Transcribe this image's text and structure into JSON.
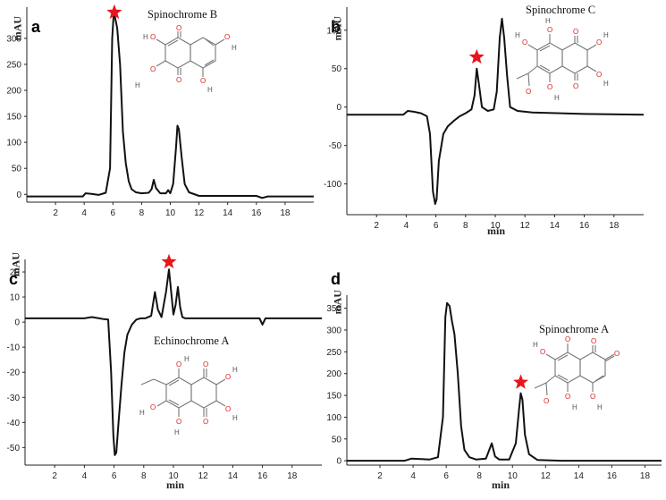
{
  "chart_data": [
    {
      "panel": "a",
      "type": "line",
      "title": "Spinochrome B",
      "xlabel": "",
      "ylabel": "mAU",
      "xlim": [
        0,
        20
      ],
      "ylim": [
        -15,
        360
      ],
      "xticks": [
        2,
        4,
        6,
        8,
        10,
        12,
        14,
        16,
        18
      ],
      "yticks": [
        0,
        50,
        100,
        150,
        200,
        250,
        300
      ],
      "x": [
        0,
        3.9,
        4.1,
        4.5,
        5.0,
        5.5,
        5.8,
        5.95,
        6.05,
        6.15,
        6.3,
        6.5,
        6.7,
        6.9,
        7.1,
        7.3,
        7.6,
        8.0,
        8.5,
        8.7,
        8.85,
        9.0,
        9.3,
        9.7,
        9.85,
        10.0,
        10.2,
        10.4,
        10.5,
        10.6,
        10.8,
        11.0,
        11.3,
        12.0,
        16.0,
        16.4,
        16.8,
        20
      ],
      "y": [
        -4,
        -4,
        2,
        1,
        -1,
        3,
        50,
        300,
        345,
        340,
        320,
        250,
        120,
        60,
        25,
        10,
        4,
        2,
        3,
        10,
        28,
        12,
        2,
        2,
        8,
        2,
        20,
        90,
        132,
        125,
        70,
        20,
        4,
        -3,
        -3,
        -7,
        -4,
        -4
      ],
      "markers": [
        {
          "x": 6.1,
          "y": 350
        }
      ],
      "compound": "Spinochrome B"
    },
    {
      "panel": "b",
      "type": "line",
      "title": "Spinochrome C",
      "xlabel": "min",
      "ylabel": "mAU",
      "xlim": [
        0,
        20
      ],
      "ylim": [
        -140,
        130
      ],
      "xticks": [
        2,
        4,
        6,
        8,
        10,
        12,
        14,
        16,
        18
      ],
      "yticks": [
        -100,
        -50,
        0,
        50,
        100
      ],
      "x": [
        0,
        3.8,
        4.1,
        4.5,
        5.0,
        5.4,
        5.6,
        5.8,
        5.95,
        6.05,
        6.2,
        6.5,
        6.8,
        7.2,
        7.6,
        8.0,
        8.4,
        8.6,
        8.75,
        8.9,
        9.1,
        9.5,
        9.9,
        10.1,
        10.3,
        10.45,
        10.6,
        10.8,
        11.0,
        11.5,
        12.5,
        16.0,
        20
      ],
      "y": [
        -10,
        -10,
        -5,
        -6,
        -8,
        -12,
        -35,
        -110,
        -126,
        -120,
        -70,
        -35,
        -25,
        -18,
        -12,
        -8,
        -3,
        15,
        50,
        30,
        0,
        -5,
        -3,
        20,
        90,
        115,
        90,
        40,
        0,
        -5,
        -7,
        -9,
        -10
      ],
      "markers": [
        {
          "x": 8.75,
          "y": 65
        }
      ],
      "compound": "Spinochrome C"
    },
    {
      "panel": "c",
      "type": "line",
      "title": "Echinochrome A",
      "xlabel": "min",
      "ylabel": "mAU",
      "xlim": [
        0,
        20
      ],
      "ylim": [
        -57,
        25
      ],
      "xticks": [
        2,
        4,
        6,
        8,
        10,
        12,
        14,
        16,
        18
      ],
      "yticks": [
        -50,
        -40,
        -30,
        -20,
        -10,
        0,
        10,
        20
      ],
      "x": [
        0,
        4.0,
        4.5,
        5.0,
        5.3,
        5.6,
        5.8,
        5.95,
        6.05,
        6.15,
        6.3,
        6.5,
        6.7,
        6.9,
        7.2,
        7.5,
        7.8,
        8.1,
        8.5,
        8.75,
        8.95,
        9.2,
        9.5,
        9.7,
        9.85,
        10.0,
        10.15,
        10.3,
        10.45,
        10.6,
        10.8,
        11.5,
        15.8,
        16.0,
        16.2,
        20
      ],
      "y": [
        1.5,
        1.5,
        2,
        1.5,
        1.2,
        1.0,
        -20,
        -45,
        -53,
        -52,
        -40,
        -25,
        -12,
        -5,
        -1,
        1,
        1.5,
        1.5,
        2.5,
        12,
        5,
        2,
        12,
        21,
        12,
        3,
        7,
        14,
        6,
        2,
        1.5,
        1.5,
        1.5,
        -1,
        1.5,
        1.5
      ],
      "markers": [
        {
          "x": 9.7,
          "y": 24
        }
      ],
      "compound": "Echinochrome A"
    },
    {
      "panel": "d",
      "type": "line",
      "title": "Spinochrome A",
      "xlabel": "min",
      "ylabel": "mAU",
      "xlim": [
        0,
        19
      ],
      "ylim": [
        -10,
        380
      ],
      "xticks": [
        2,
        4,
        6,
        8,
        10,
        12,
        14,
        16,
        18
      ],
      "yticks": [
        0,
        50,
        100,
        150,
        200,
        250,
        300,
        350
      ],
      "x": [
        0,
        3.5,
        3.9,
        4.5,
        5.0,
        5.5,
        5.8,
        5.95,
        6.05,
        6.2,
        6.35,
        6.5,
        6.7,
        6.9,
        7.1,
        7.4,
        7.8,
        8.4,
        8.75,
        8.95,
        9.2,
        9.8,
        10.2,
        10.4,
        10.5,
        10.6,
        10.75,
        11.0,
        11.5,
        13.0,
        16.5,
        19
      ],
      "y": [
        0,
        0,
        5,
        4,
        3,
        8,
        100,
        330,
        362,
        355,
        320,
        290,
        200,
        80,
        25,
        8,
        3,
        5,
        40,
        10,
        3,
        3,
        40,
        120,
        155,
        140,
        60,
        15,
        2,
        0,
        0,
        0
      ],
      "markers": [
        {
          "x": 10.5,
          "y": 180
        }
      ],
      "compound": "Spinochrome A"
    }
  ]
}
